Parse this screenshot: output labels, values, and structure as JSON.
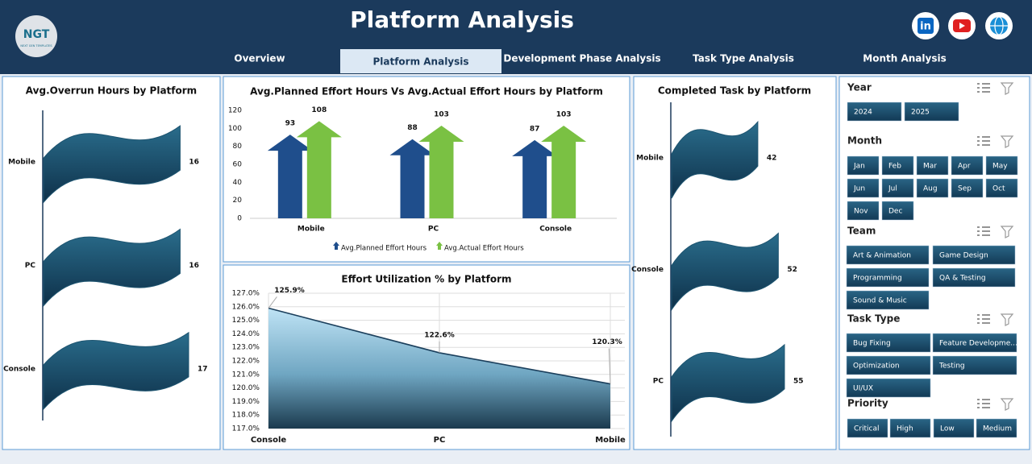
{
  "header": {
    "title": "Platform Analysis",
    "logo": "NGT",
    "logo_sub": "NEXT GEN TEMPLATES",
    "social": [
      "in"
    ]
  },
  "nav": {
    "tabs": [
      "Overview",
      "Platform Analysis",
      "Development Phase Analysis",
      "Task Type Analysis",
      "Month Analysis"
    ],
    "active": 1
  },
  "chart_data": [
    {
      "type": "bar",
      "orientation": "horizontal",
      "title": "Avg.Overrun Hours by Platform",
      "categories": [
        "Mobile",
        "PC",
        "Console"
      ],
      "values": [
        16,
        16,
        17
      ],
      "color": "#1d5470"
    },
    {
      "type": "bar",
      "title": "Avg.Planned Effort Hours Vs Avg.Actual Effort Hours by Platform",
      "categories": [
        "Mobile",
        "PC",
        "Console"
      ],
      "series": [
        {
          "name": "Avg.Planned Effort Hours",
          "color": "#1f4e8c",
          "values": [
            93,
            88,
            87
          ]
        },
        {
          "name": "Avg.Actual Effort Hours",
          "color": "#7ac143",
          "values": [
            108,
            103,
            103
          ]
        }
      ],
      "ylim": [
        0,
        120
      ],
      "yticks": [
        0,
        20,
        40,
        60,
        80,
        100,
        120
      ],
      "grid": false
    },
    {
      "type": "area",
      "title": "Effort Utilization % by Platform",
      "categories": [
        "Console",
        "PC",
        "Mobile"
      ],
      "values": [
        125.9,
        122.6,
        120.3
      ],
      "value_labels": [
        "125.9%",
        "122.6%",
        "120.3%"
      ],
      "color": "#1b3f5c",
      "ylim": [
        117,
        127
      ],
      "yticks": [
        {
          "value": 117,
          "label": "117.0%"
        },
        {
          "value": 118,
          "label": "118.0%"
        },
        {
          "value": 119,
          "label": "119.0%"
        },
        {
          "value": 120,
          "label": "120.0%"
        },
        {
          "value": 121,
          "label": "121.0%"
        },
        {
          "value": 122,
          "label": "122.0%"
        },
        {
          "value": 123,
          "label": "123.0%"
        },
        {
          "value": 124,
          "label": "124.0%"
        },
        {
          "value": 125,
          "label": "125.0%"
        },
        {
          "value": 126,
          "label": "126.0%"
        },
        {
          "value": 127,
          "label": "127.0%"
        }
      ],
      "grid": true
    },
    {
      "type": "bar",
      "orientation": "horizontal",
      "title": "Completed Task by Platform",
      "categories": [
        "Mobile",
        "Console",
        "PC"
      ],
      "values": [
        42,
        52,
        55
      ],
      "color": "#1d5470"
    }
  ],
  "slicers": [
    {
      "title": "Year",
      "items": [
        "2024",
        "2025"
      ]
    },
    {
      "title": "Month",
      "items": [
        "Jan",
        "Feb",
        "Mar",
        "Apr",
        "May",
        "Jun",
        "Jul",
        "Aug",
        "Sep",
        "Oct",
        "Nov",
        "Dec"
      ]
    },
    {
      "title": "Team",
      "items": [
        "Art & Animation",
        "Game Design",
        "Programming",
        "QA & Testing",
        "Sound & Music"
      ]
    },
    {
      "title": "Task Type",
      "items": [
        "Bug Fixing",
        "Feature Developme...",
        "Optimization",
        "Testing",
        "UI/UX"
      ]
    },
    {
      "title": "Priority",
      "items": [
        "Critical",
        "High",
        "Low",
        "Medium"
      ]
    }
  ]
}
